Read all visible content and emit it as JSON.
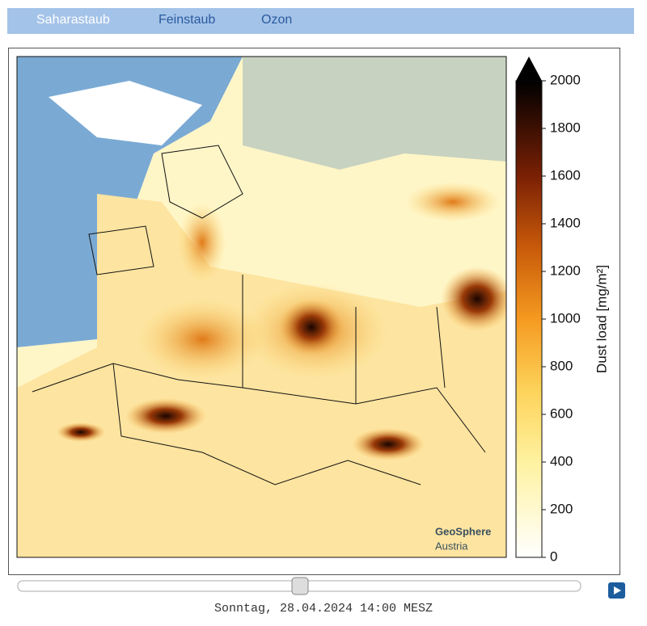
{
  "tabs": [
    "Saharastaub",
    "Feinstaub",
    "Ozon"
  ],
  "colorbar": {
    "label": "Dust load [mg/m²]",
    "lim": [
      0,
      2000
    ],
    "ticks": [
      0,
      200,
      400,
      600,
      800,
      1000,
      1200,
      1400,
      1600,
      1800,
      2000
    ]
  },
  "logo": {
    "name": "GeoSphere",
    "sub": "Austria"
  },
  "timestamp": "Sonntag, 28.04.2024 14:00 MESZ"
}
